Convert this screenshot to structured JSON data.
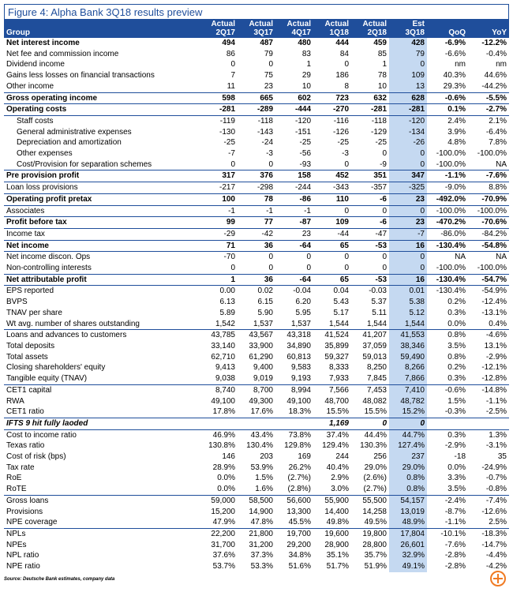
{
  "title": "Figure 4: Alpha Bank 3Q18 results preview",
  "header": {
    "top": [
      "Actual",
      "Actual",
      "Actual",
      "Actual",
      "Actual",
      "Est"
    ],
    "bottom": [
      "Group",
      "2Q17",
      "3Q17",
      "4Q17",
      "1Q18",
      "2Q18",
      "3Q18",
      "QoQ",
      "YoY"
    ]
  },
  "rows": [
    {
      "label": "Net interest income",
      "values": [
        "494",
        "487",
        "480",
        "444",
        "459",
        "428",
        "-6.9%",
        "-12.2%"
      ]
    },
    {
      "label": "Net fee and commission income",
      "values": [
        "86",
        "79",
        "83",
        "84",
        "85",
        "79",
        "-6.6%",
        "-0.4%"
      ]
    },
    {
      "label": "Dividend income",
      "values": [
        "0",
        "0",
        "1",
        "0",
        "1",
        "0",
        "nm",
        "nm"
      ]
    },
    {
      "label": "Gains less losses on financial transactions",
      "values": [
        "7",
        "75",
        "29",
        "186",
        "78",
        "109",
        "40.3%",
        "44.6%"
      ]
    },
    {
      "label": "Other income",
      "values": [
        "11",
        "23",
        "10",
        "8",
        "10",
        "13",
        "29.3%",
        "-44.2%"
      ]
    },
    {
      "label": "Gross operating income",
      "values": [
        "598",
        "665",
        "602",
        "723",
        "632",
        "628",
        "-0.6%",
        "-5.5%"
      ]
    },
    {
      "label": "Operating costs",
      "values": [
        "-281",
        "-289",
        "-444",
        "-270",
        "-281",
        "-281",
        "0.1%",
        "-2.7%"
      ]
    },
    {
      "label": "Staff costs",
      "values": [
        "-119",
        "-118",
        "-120",
        "-116",
        "-118",
        "-120",
        "2.4%",
        "2.1%"
      ]
    },
    {
      "label": "General administrative expenses",
      "values": [
        "-130",
        "-143",
        "-151",
        "-126",
        "-129",
        "-134",
        "3.9%",
        "-6.4%"
      ]
    },
    {
      "label": "Depreciation and amortization",
      "values": [
        "-25",
        "-24",
        "-25",
        "-25",
        "-25",
        "-26",
        "4.8%",
        "7.8%"
      ]
    },
    {
      "label": "Other expenses",
      "values": [
        "-7",
        "-3",
        "-56",
        "-3",
        "0",
        "0",
        "-100.0%",
        "-100.0%"
      ]
    },
    {
      "label": "Cost/Provision for separation schemes",
      "values": [
        "0",
        "0",
        "-93",
        "0",
        "-9",
        "0",
        "-100.0%",
        "NA"
      ]
    },
    {
      "label": "Pre provision profit",
      "values": [
        "317",
        "376",
        "158",
        "452",
        "351",
        "347",
        "-1.1%",
        "-7.6%"
      ]
    },
    {
      "label": "Loan loss provisions",
      "values": [
        "-217",
        "-298",
        "-244",
        "-343",
        "-357",
        "-325",
        "-9.0%",
        "8.8%"
      ]
    },
    {
      "label": "Operating profit pretax",
      "values": [
        "100",
        "78",
        "-86",
        "110",
        "-6",
        "23",
        "-492.0%",
        "-70.9%"
      ]
    },
    {
      "label": "Associates",
      "values": [
        "-1",
        "-1",
        "-1",
        "0",
        "0",
        "0",
        "-100.0%",
        "-100.0%"
      ]
    },
    {
      "label": "Profit before tax",
      "values": [
        "99",
        "77",
        "-87",
        "109",
        "-6",
        "23",
        "-470.2%",
        "-70.6%"
      ]
    },
    {
      "label": "Income tax",
      "values": [
        "-29",
        "-42",
        "23",
        "-44",
        "-47",
        "-7",
        "-86.0%",
        "-84.2%"
      ]
    },
    {
      "label": "Net income",
      "values": [
        "71",
        "36",
        "-64",
        "65",
        "-53",
        "16",
        "-130.4%",
        "-54.8%"
      ]
    },
    {
      "label": "Net income discon. Ops",
      "values": [
        "-70",
        "0",
        "0",
        "0",
        "0",
        "0",
        "NA",
        "NA"
      ]
    },
    {
      "label": "Non-controlling interests",
      "values": [
        "0",
        "0",
        "0",
        "0",
        "0",
        "0",
        "-100.0%",
        "-100.0%"
      ]
    },
    {
      "label": "Net attributable profit",
      "values": [
        "1",
        "36",
        "-64",
        "65",
        "-53",
        "16",
        "-130.4%",
        "-54.7%"
      ]
    },
    {
      "label": "EPS reported",
      "values": [
        "0.00",
        "0.02",
        "-0.04",
        "0.04",
        "-0.03",
        "0.01",
        "-130.4%",
        "-54.9%"
      ]
    },
    {
      "label": "BVPS",
      "values": [
        "6.13",
        "6.15",
        "6.20",
        "5.43",
        "5.37",
        "5.38",
        "0.2%",
        "-12.4%"
      ]
    },
    {
      "label": "TNAV per share",
      "values": [
        "5.89",
        "5.90",
        "5.95",
        "5.17",
        "5.11",
        "5.12",
        "0.3%",
        "-13.1%"
      ]
    },
    {
      "label": "Wt avg. number of shares outstanding",
      "values": [
        "1,542",
        "1,537",
        "1,537",
        "1,544",
        "1,544",
        "1,544",
        "0.0%",
        "0.4%"
      ]
    },
    {
      "label": "Loans and advances to customers",
      "values": [
        "43,785",
        "43,567",
        "43,318",
        "41,524",
        "41,207",
        "41,553",
        "0.8%",
        "-4.6%"
      ]
    },
    {
      "label": "Total deposits",
      "values": [
        "33,140",
        "33,900",
        "34,890",
        "35,899",
        "37,059",
        "38,346",
        "3.5%",
        "13.1%"
      ]
    },
    {
      "label": "Total assets",
      "values": [
        "62,710",
        "61,290",
        "60,813",
        "59,327",
        "59,013",
        "59,490",
        "0.8%",
        "-2.9%"
      ]
    },
    {
      "label": "Closing shareholders' equity",
      "values": [
        "9,413",
        "9,400",
        "9,583",
        "8,333",
        "8,250",
        "8,266",
        "0.2%",
        "-12.1%"
      ]
    },
    {
      "label": "Tangible equity (TNAV)",
      "values": [
        "9,038",
        "9,019",
        "9,193",
        "7,933",
        "7,845",
        "7,866",
        "0.3%",
        "-12.8%"
      ]
    },
    {
      "label": "CET1 capital",
      "values": [
        "8,740",
        "8,700",
        "8,994",
        "7,566",
        "7,453",
        "7,410",
        "-0.6%",
        "-14.8%"
      ]
    },
    {
      "label": "RWA",
      "values": [
        "49,100",
        "49,300",
        "49,100",
        "48,700",
        "48,082",
        "48,782",
        "1.5%",
        "-1.1%"
      ]
    },
    {
      "label": "CET1 ratio",
      "values": [
        "17.8%",
        "17.6%",
        "18.3%",
        "15.5%",
        "15.5%",
        "15.2%",
        "-0.3%",
        "-2.5%"
      ]
    },
    {
      "label": "IFTS 9 hit fully laoded",
      "values": [
        null,
        null,
        null,
        "1,169",
        "0",
        "0",
        null,
        null
      ]
    },
    {
      "label": "Cost to income ratio",
      "values": [
        "46.9%",
        "43.4%",
        "73.8%",
        "37.4%",
        "44.4%",
        "44.7%",
        "0.3%",
        "1.3%"
      ]
    },
    {
      "label": "Texas ratio",
      "values": [
        "130.8%",
        "130.4%",
        "129.8%",
        "129.4%",
        "130.3%",
        "127.4%",
        "-2.9%",
        "-3.1%"
      ]
    },
    {
      "label": "Cost of risk (bps)",
      "values": [
        "146",
        "203",
        "169",
        "244",
        "256",
        "237",
        "-18",
        "35"
      ]
    },
    {
      "label": "Tax rate",
      "values": [
        "28.9%",
        "53.9%",
        "26.2%",
        "40.4%",
        "29.0%",
        "29.0%",
        "0.0%",
        "-24.9%"
      ]
    },
    {
      "label": "RoE",
      "values": [
        "0.0%",
        "1.5%",
        "(2.7%)",
        "2.9%",
        "(2.6%)",
        "0.8%",
        "3.3%",
        "-0.7%"
      ]
    },
    {
      "label": "RoTE",
      "values": [
        "0.0%",
        "1.6%",
        "(2.8%)",
        "3.0%",
        "(2.7%)",
        "0.8%",
        "3.5%",
        "-0.8%"
      ]
    },
    {
      "label": "Gross loans",
      "values": [
        "59,000",
        "58,500",
        "56,600",
        "55,900",
        "55,500",
        "54,157",
        "-2.4%",
        "-7.4%"
      ]
    },
    {
      "label": "Provisions",
      "values": [
        "15,200",
        "14,900",
        "13,300",
        "14,400",
        "14,258",
        "13,019",
        "-8.7%",
        "-12.6%"
      ]
    },
    {
      "label": "NPE coverage",
      "values": [
        "47.9%",
        "47.8%",
        "45.5%",
        "49.8%",
        "49.5%",
        "48.9%",
        "-1.1%",
        "2.5%"
      ]
    },
    {
      "label": "NPLs",
      "values": [
        "22,200",
        "21,800",
        "19,700",
        "19,600",
        "19,800",
        "17,804",
        "-10.1%",
        "-18.3%"
      ]
    },
    {
      "label": "NPEs",
      "values": [
        "31,700",
        "31,200",
        "29,200",
        "28,900",
        "28,800",
        "26,601",
        "-7.6%",
        "-14.7%"
      ]
    },
    {
      "label": "NPL ratio",
      "values": [
        "37.6%",
        "37.3%",
        "34.8%",
        "35.1%",
        "35.7%",
        "32.9%",
        "-2.8%",
        "-4.4%"
      ]
    },
    {
      "label": "NPE ratio",
      "values": [
        "53.7%",
        "53.3%",
        "51.6%",
        "51.7%",
        "51.9%",
        "49.1%",
        "-2.8%",
        "-4.2%"
      ]
    }
  ],
  "source": "Source: Deutsche Bank estimates, company data"
}
